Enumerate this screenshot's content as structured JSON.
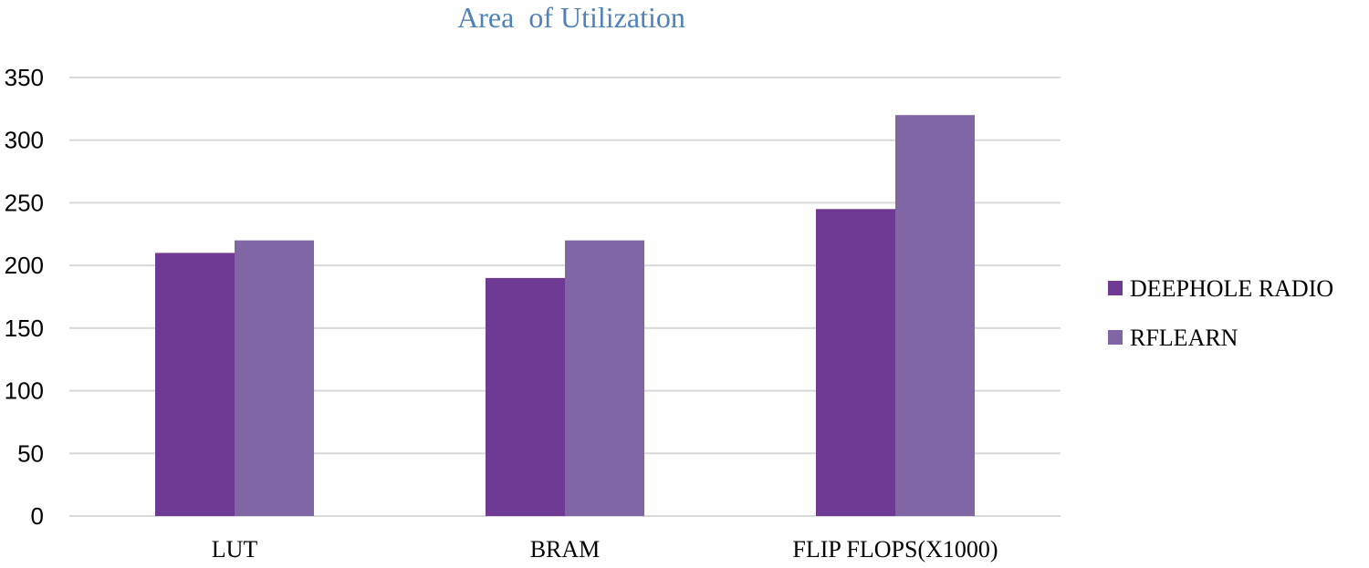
{
  "chart_data": {
    "type": "bar",
    "title": "Area  of Utilization",
    "xlabel": "",
    "ylabel": "",
    "categories": [
      "LUT",
      "BRAM",
      "FLIP FLOPS(X1000)"
    ],
    "series": [
      {
        "name": "DEEPHOLE RADIO",
        "values": [
          210,
          190,
          245
        ],
        "color": "#6e3a93"
      },
      {
        "name": "RFLEARN",
        "values": [
          220,
          220,
          320
        ],
        "color": "#8066a4"
      }
    ],
    "ylim": [
      0,
      350
    ],
    "yticks": [
      "0",
      "50",
      "100",
      "150",
      "200",
      "250",
      "300",
      "350"
    ],
    "grid": true,
    "legend_position": "right",
    "colors": {
      "title": "#4f81bd",
      "grid": "#d9d9d9",
      "axis": "#d9d9d9"
    }
  }
}
